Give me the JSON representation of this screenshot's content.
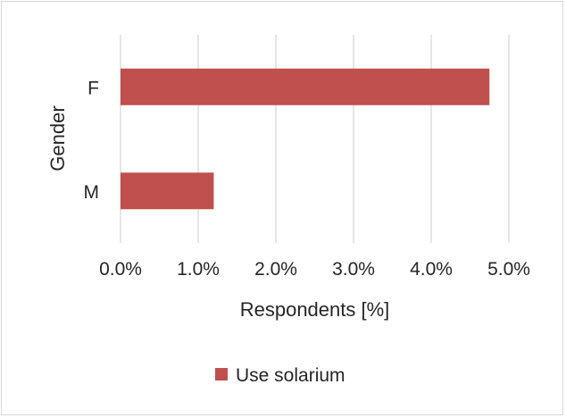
{
  "chart_data": {
    "type": "bar",
    "orientation": "horizontal",
    "categories": [
      "F",
      "M"
    ],
    "series": [
      {
        "name": "Use solarium",
        "values": [
          4.75,
          1.2
        ],
        "color": "#c0504d"
      }
    ],
    "xlabel": "Respondents [%]",
    "ylabel": "Gender",
    "xlim": [
      0,
      5
    ],
    "x_ticks": [
      0,
      1,
      2,
      3,
      4,
      5
    ],
    "x_tick_labels": [
      "0.0%",
      "1.0%",
      "2.0%",
      "3.0%",
      "4.0%",
      "5.0%"
    ],
    "grid": "vertical",
    "legend_position": "bottom",
    "gridline_color": "#d9d9d9",
    "text_color": "#262626"
  }
}
